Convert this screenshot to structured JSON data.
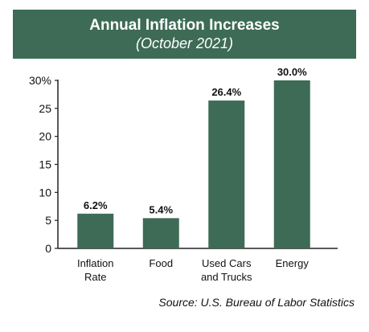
{
  "header": {
    "title": "Annual Inflation Increases",
    "subtitle": "(October 2021)"
  },
  "source": "Source: U.S. Bureau of Labor Statistics",
  "colors": {
    "banner": "#3d6b56",
    "bar": "#3d6b56",
    "axis": "#222222",
    "text": "#111111"
  },
  "chart_data": {
    "type": "bar",
    "title": "Annual Inflation Increases",
    "subtitle": "(October 2021)",
    "categories": [
      [
        "Inflation",
        "Rate"
      ],
      [
        "Food"
      ],
      [
        "Used Cars",
        "and Trucks"
      ],
      [
        "Energy"
      ]
    ],
    "values": [
      6.2,
      5.4,
      26.4,
      30.0
    ],
    "data_labels": [
      "6.2%",
      "5.4%",
      "26.4%",
      "30.0%"
    ],
    "ylim": [
      0,
      30
    ],
    "yticks": [
      0,
      5,
      10,
      15,
      20,
      25,
      30
    ],
    "ytick_labels": [
      "0",
      "5",
      "10",
      "15",
      "20",
      "25",
      "30%"
    ],
    "grid": false,
    "xlabel": "",
    "ylabel": ""
  }
}
